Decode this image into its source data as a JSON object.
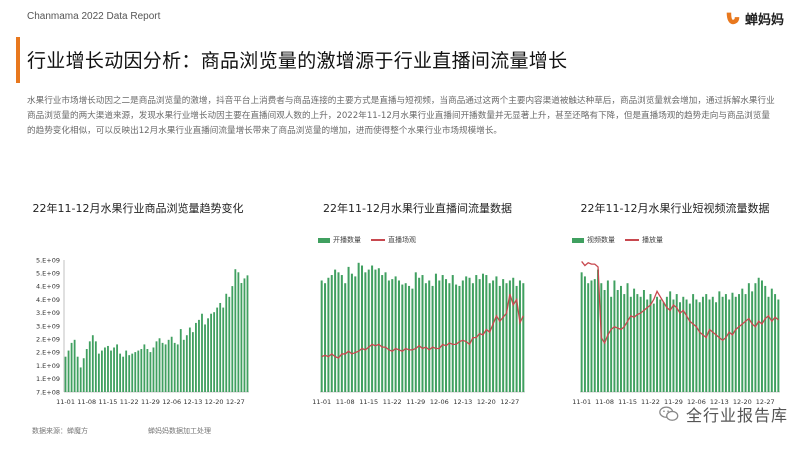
{
  "header": {
    "report_name": "Chanmama 2022 Data Report",
    "brand_name": "蝉妈妈"
  },
  "page_title": "行业增长动因分析：商品浏览量的激增源于行业直播间流量增长",
  "summary": "水果行业市场增长动因之二是商品浏览量的激增，抖音平台上消费者与商品连接的主要方式是直播与短视频，当商品通过这两个主要内容渠道被触达种草后，商品浏览量就会增加，通过拆解水果行业商品浏览量的两大渠道来源，发现水果行业增长动因主要在直播间观人数的上升，2022年11-12月水果行业直播间开播数量并无显著上升，甚至还略有下降，但是直播场观的趋势走向与商品浏览量的趋势变化相似，可以反映出12月水果行业直播间流量增长带来了商品浏览量的增加，进而使得整个水果行业市场规模增长。",
  "colors": {
    "bar_green": "#40a060",
    "line_red": "#c8484f",
    "accent": "#e8781e"
  },
  "footer": {
    "source": "数据来源：蝉魔方",
    "note": "蝉妈妈数据加工处理"
  },
  "watermark": {
    "text": "全行业报告库",
    "icon": "wechat-icon"
  },
  "chart_data": [
    {
      "type": "bar",
      "title": "22年11-12月水果行业商品浏览量趋势变化",
      "ylim": [
        700000000,
        5000000000
      ],
      "y_ticks": [
        "5.E+09",
        "5.E+09",
        "4.E+09",
        "4.E+09",
        "3.E+09",
        "3.E+09",
        "2.E+09",
        "2.E+09",
        "1.E+09",
        "1.E+09",
        "7.E+08"
      ],
      "x_ticks": [
        "11-01",
        "11-08",
        "11-15",
        "11-22",
        "11-29",
        "12-06",
        "12-13",
        "12-20",
        "12-27"
      ],
      "series": [
        {
          "values": [
            1850000000,
            2050000000,
            2300000000,
            2400000000,
            1850000000,
            1500000000,
            1800000000,
            2100000000,
            2350000000,
            2550000000,
            2350000000,
            1950000000,
            2050000000,
            2150000000,
            2200000000,
            2050000000,
            2150000000,
            2250000000,
            1950000000,
            1850000000,
            2050000000,
            1900000000,
            1950000000,
            2000000000,
            2050000000,
            2100000000,
            2250000000,
            2100000000,
            2000000000,
            2150000000,
            2350000000,
            2450000000,
            2300000000,
            2250000000,
            2400000000,
            2500000000,
            2300000000,
            2250000000,
            2750000000,
            2400000000,
            2550000000,
            2800000000,
            2650000000,
            2950000000,
            3050000000,
            3250000000,
            2900000000,
            3100000000,
            3250000000,
            3300000000,
            3450000000,
            3600000000,
            3450000000,
            3900000000,
            3800000000,
            4150000000,
            4700000000,
            4600000000,
            4250000000,
            4400000000,
            4500000000
          ]
        }
      ]
    },
    {
      "type": "bar",
      "title": "22年11-12月水果行业直播间流量数据",
      "legend_position": "top-left",
      "x_ticks": [
        "11-01",
        "11-08",
        "11-15",
        "11-22",
        "11-29",
        "12-06",
        "12-13",
        "12-20",
        "12-27"
      ],
      "series": [
        {
          "name": "开播数量",
          "type": "bar",
          "values": [
            0.82,
            0.8,
            0.84,
            0.86,
            0.9,
            0.88,
            0.86,
            0.8,
            0.92,
            0.87,
            0.85,
            0.95,
            0.93,
            0.88,
            0.9,
            0.93,
            0.9,
            0.91,
            0.86,
            0.88,
            0.82,
            0.83,
            0.85,
            0.82,
            0.79,
            0.8,
            0.78,
            0.76,
            0.88,
            0.84,
            0.86,
            0.8,
            0.82,
            0.78,
            0.87,
            0.82,
            0.86,
            0.83,
            0.8,
            0.86,
            0.79,
            0.78,
            0.82,
            0.85,
            0.84,
            0.8,
            0.86,
            0.83,
            0.87,
            0.86,
            0.8,
            0.82,
            0.85,
            0.78,
            0.83,
            0.8,
            0.82,
            0.84,
            0.78,
            0.82,
            0.8
          ]
        },
        {
          "name": "直播场观",
          "type": "line",
          "values": [
            0.26,
            0.27,
            0.26,
            0.28,
            0.26,
            0.25,
            0.28,
            0.28,
            0.3,
            0.28,
            0.29,
            0.3,
            0.32,
            0.31,
            0.33,
            0.35,
            0.34,
            0.35,
            0.33,
            0.33,
            0.31,
            0.3,
            0.32,
            0.31,
            0.3,
            0.32,
            0.31,
            0.31,
            0.32,
            0.34,
            0.32,
            0.33,
            0.31,
            0.33,
            0.32,
            0.32,
            0.35,
            0.34,
            0.36,
            0.35,
            0.35,
            0.37,
            0.38,
            0.37,
            0.35,
            0.4,
            0.4,
            0.43,
            0.42,
            0.46,
            0.44,
            0.5,
            0.56,
            0.52,
            0.55,
            0.58,
            0.72,
            0.64,
            0.68,
            0.51,
            0.56
          ]
        }
      ]
    },
    {
      "type": "bar",
      "title": "22年11-12月水果行业短视频流量数据",
      "legend_position": "top-left",
      "x_ticks": [
        "11-01",
        "11-08",
        "11-15",
        "11-22",
        "11-29",
        "12-06",
        "12-13",
        "12-20",
        "12-27"
      ],
      "series": [
        {
          "name": "视频数量",
          "type": "bar",
          "values": [
            0.88,
            0.85,
            0.8,
            0.82,
            0.83,
            0.9,
            0.8,
            0.75,
            0.82,
            0.7,
            0.82,
            0.75,
            0.78,
            0.72,
            0.8,
            0.7,
            0.76,
            0.72,
            0.7,
            0.75,
            0.68,
            0.72,
            0.65,
            0.7,
            0.68,
            0.66,
            0.7,
            0.74,
            0.68,
            0.72,
            0.66,
            0.7,
            0.68,
            0.65,
            0.72,
            0.68,
            0.66,
            0.7,
            0.72,
            0.68,
            0.7,
            0.66,
            0.74,
            0.7,
            0.72,
            0.68,
            0.73,
            0.7,
            0.72,
            0.76,
            0.72,
            0.8,
            0.74,
            0.8,
            0.84,
            0.82,
            0.78,
            0.7,
            0.76,
            0.72,
            0.68
          ]
        },
        {
          "name": "播放量",
          "type": "line",
          "values": [
            0.96,
            0.93,
            0.95,
            0.94,
            0.94,
            0.92,
            0.4,
            0.36,
            0.42,
            0.46,
            0.48,
            0.47,
            0.46,
            0.48,
            0.52,
            0.56,
            0.55,
            0.57,
            0.58,
            0.6,
            0.62,
            0.64,
            0.68,
            0.74,
            0.7,
            0.66,
            0.62,
            0.6,
            0.64,
            0.62,
            0.58,
            0.6,
            0.56,
            0.52,
            0.5,
            0.48,
            0.44,
            0.42,
            0.4,
            0.46,
            0.44,
            0.42,
            0.4,
            0.38,
            0.4,
            0.44,
            0.42,
            0.46,
            0.48,
            0.5,
            0.52,
            0.54,
            0.5,
            0.48,
            0.52,
            0.5,
            0.54,
            0.56,
            0.52,
            0.55,
            0.53
          ]
        }
      ]
    }
  ]
}
